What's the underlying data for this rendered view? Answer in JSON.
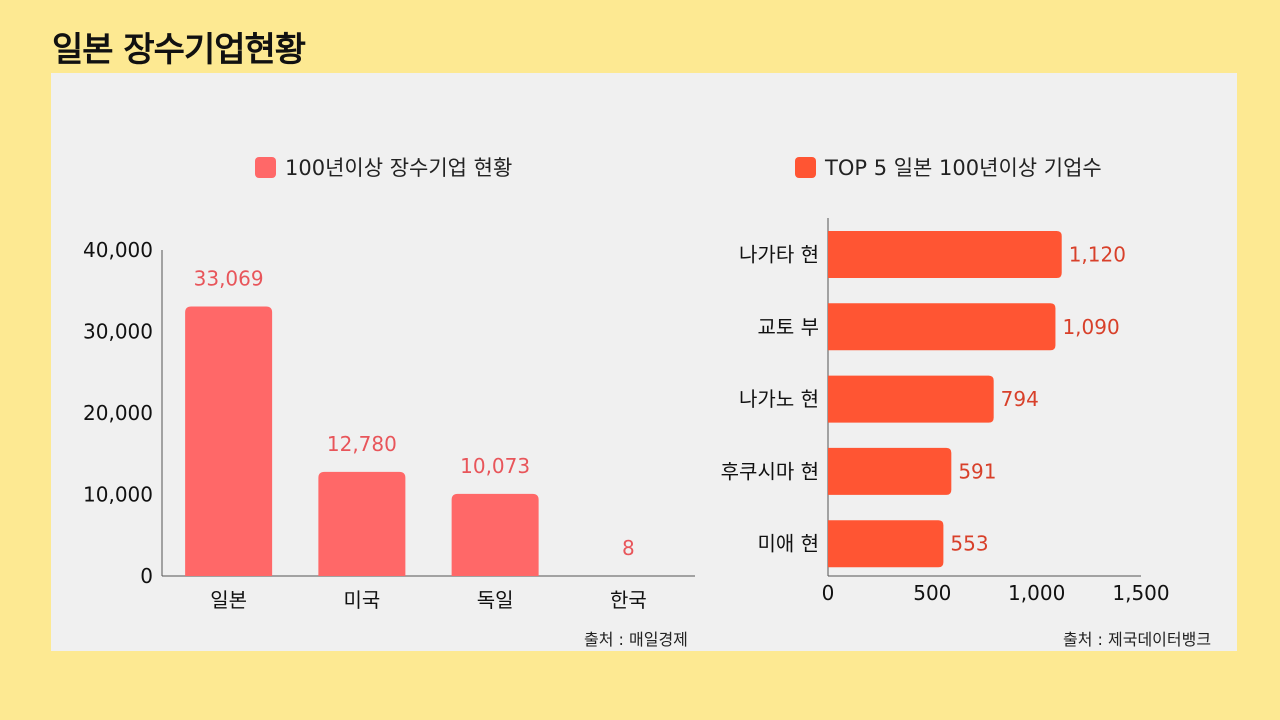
{
  "page_title": "일본 장수기업현황",
  "colors": {
    "background": "#fde992",
    "panel": "#f0f0f0",
    "left_bar": "#ff6868",
    "left_label": "#e8555a",
    "right_bar": "#ff5533",
    "right_label": "#d8402a",
    "axis": "#555555"
  },
  "left": {
    "legend": "100년이상 장수기업 현황",
    "source": "출처 : 매일경제"
  },
  "right": {
    "legend": "TOP 5 일본 100년이상 기업수",
    "source": "출처 : 제국데이터뱅크"
  },
  "chart_data": [
    {
      "type": "bar",
      "orientation": "vertical",
      "title": "100년이상 장수기업 현황",
      "categories": [
        "일본",
        "미국",
        "독일",
        "한국"
      ],
      "values": [
        33069,
        12780,
        10073,
        8
      ],
      "value_labels": [
        "33,069",
        "12,780",
        "10,073",
        "8"
      ],
      "ylim": [
        0,
        40000
      ],
      "yticks": [
        0,
        10000,
        20000,
        30000,
        40000
      ],
      "ytick_labels": [
        "0",
        "10,000",
        "20,000",
        "30,000",
        "40,000"
      ],
      "xlabel": "",
      "ylabel": "",
      "grid": false,
      "source": "출처 : 매일경제"
    },
    {
      "type": "bar",
      "orientation": "horizontal",
      "title": "TOP 5 일본 100년이상 기업수",
      "categories": [
        "나가타 현",
        "교토 부",
        "나가노 현",
        "후쿠시마 현",
        "미애 현"
      ],
      "values": [
        1120,
        1090,
        794,
        591,
        553
      ],
      "value_labels": [
        "1,120",
        "1,090",
        "794",
        "591",
        "553"
      ],
      "xlim": [
        0,
        1500
      ],
      "xticks": [
        0,
        500,
        1000,
        1500
      ],
      "xtick_labels": [
        "0",
        "500",
        "1,000",
        "1,500"
      ],
      "xlabel": "",
      "ylabel": "",
      "grid": false,
      "source": "출처 : 제국데이터뱅크"
    }
  ]
}
